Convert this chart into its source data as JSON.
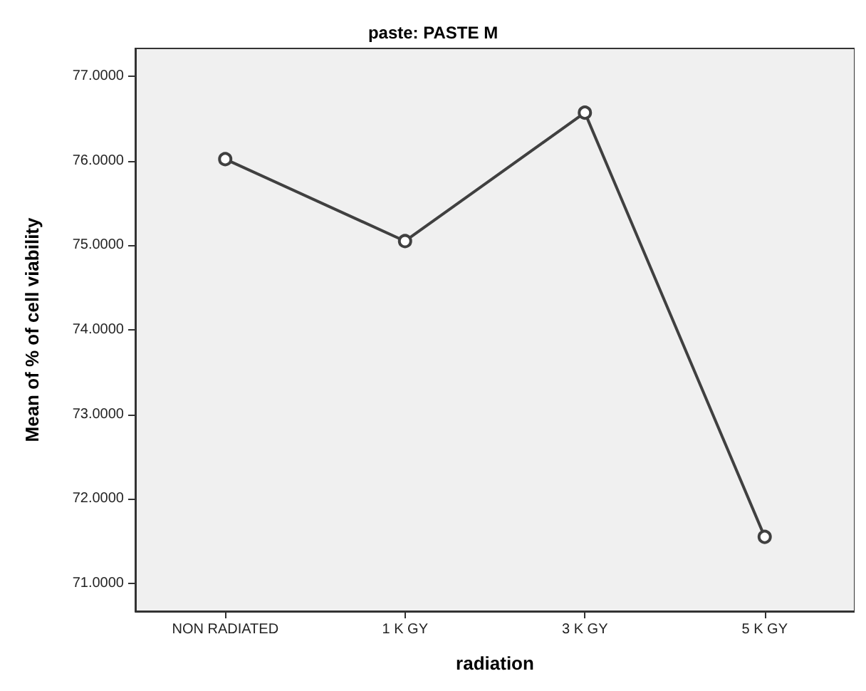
{
  "chart_data": {
    "type": "line",
    "title": "paste: PASTE M",
    "xlabel": "radiation",
    "ylabel": "Mean of % of cell viability",
    "categories": [
      "NON RADIATED",
      "1 K GY",
      "3 K GY",
      "5 K GY"
    ],
    "series": [
      {
        "color": "#404040",
        "values": [
          76.02,
          75.05,
          76.57,
          71.55
        ]
      }
    ],
    "ylim": [
      70.67,
      77.33
    ],
    "yticks": [
      {
        "value": 71,
        "label": "71.0000"
      },
      {
        "value": 72,
        "label": "72.0000"
      },
      {
        "value": 73,
        "label": "73.0000"
      },
      {
        "value": 74,
        "label": "74.0000"
      },
      {
        "value": 75,
        "label": "75.0000"
      },
      {
        "value": 76,
        "label": "76.0000"
      },
      {
        "value": 77,
        "label": "77.0000"
      }
    ],
    "grid": false,
    "marker": "circle",
    "line_style": "solid"
  }
}
